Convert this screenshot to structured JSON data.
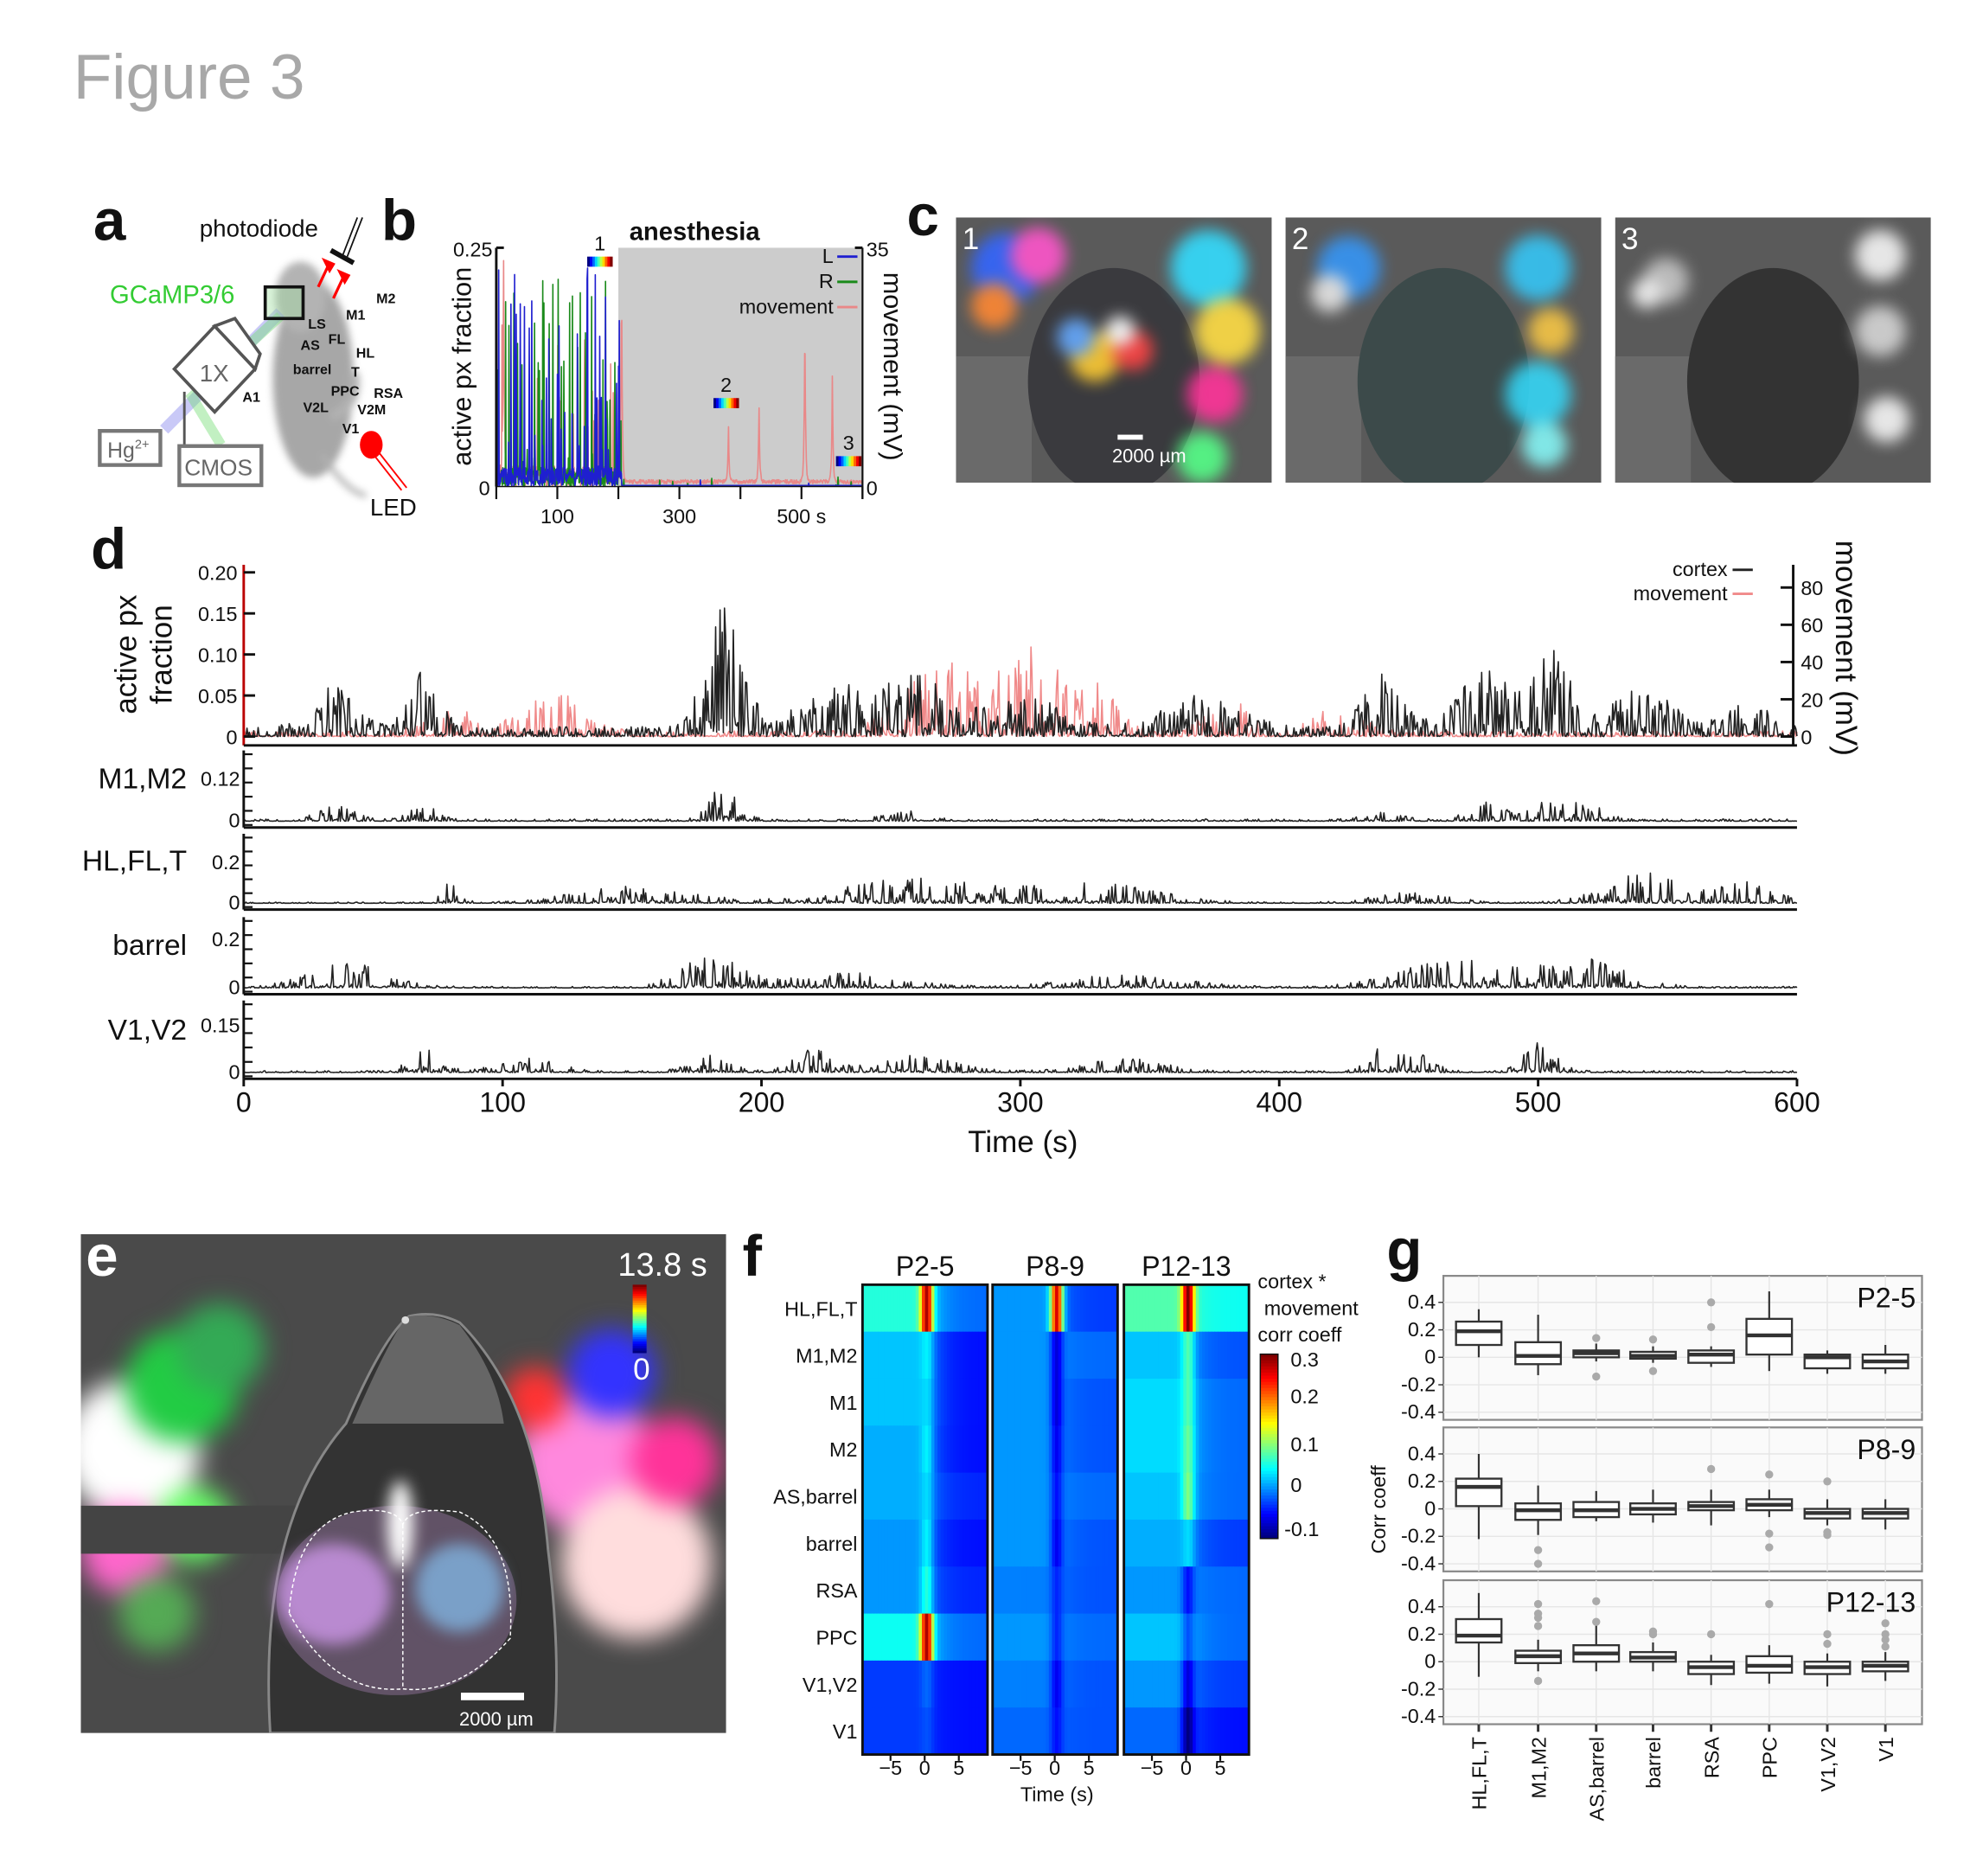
{
  "figure_title": "Figure 3",
  "panels": {
    "a": "a",
    "b": "b",
    "c": "c",
    "d": "d",
    "e": "e",
    "f": "f",
    "g": "g"
  },
  "panel_a": {
    "photodiode": "photodiode",
    "indicator": "GCaMP3/6",
    "lens": "1X",
    "lamp": "Hg",
    "lamp_sup": "2+",
    "camera": "CMOS",
    "led": "LED",
    "indicator_color": "#33cc33",
    "led_color": "#ff0000"
  },
  "panel_b": {
    "title": "anesthesia",
    "ylabel_left": "active px fraction",
    "ylabel_right": "movement (mV)",
    "yticks_left": [
      "0.25",
      "0"
    ],
    "yticks_right": [
      "35",
      "0"
    ],
    "xticks": [
      {
        "v": 100,
        "label": "100"
      },
      {
        "v": 300,
        "label": "300"
      },
      {
        "v": 500,
        "label": "500 s"
      }
    ],
    "xlim": [
      0,
      600
    ],
    "anesthesia_start": 200,
    "legend": [
      {
        "label": "L",
        "color": "#1f1fd0"
      },
      {
        "label": "R",
        "color": "#1a8a1a"
      },
      {
        "label": "movement",
        "color": "#e98888"
      }
    ],
    "markers": [
      {
        "label": "1",
        "t": 170
      },
      {
        "label": "2",
        "t": 375
      },
      {
        "label": "3",
        "t": 575
      }
    ],
    "movement_peaks_mV": [
      {
        "t": 12,
        "v": 33
      },
      {
        "t": 205,
        "v": 31
      },
      {
        "t": 380,
        "v": 7.8
      },
      {
        "t": 430,
        "v": 10.7
      },
      {
        "t": 505,
        "v": 25
      },
      {
        "t": 550,
        "v": 15.7
      }
    ]
  },
  "panel_c": {
    "images": [
      {
        "label": "1"
      },
      {
        "label": "2"
      },
      {
        "label": "3"
      }
    ],
    "scalebar": "2000 µm"
  },
  "panel_d": {
    "ylabel_left_1": "active px",
    "ylabel_left_2": "fraction",
    "ylabel_right": "movement (mV)",
    "yticks_left": [
      "0.20",
      "0.15",
      "0.10",
      "0.05",
      "0"
    ],
    "yticks_right": [
      "80",
      "60",
      "40",
      "20",
      "0"
    ],
    "legend": [
      {
        "label": "cortex",
        "color": "#222222"
      },
      {
        "label": "movement",
        "color": "#f08a8a"
      }
    ],
    "subplots": [
      {
        "label": "M1,M2",
        "ytick": "0.12",
        "zero": "0"
      },
      {
        "label": "HL,FL,T",
        "ytick": "0.2",
        "zero": "0"
      },
      {
        "label": "barrel",
        "ytick": "0.2",
        "zero": "0"
      },
      {
        "label": "V1,V2",
        "ytick": "0.15",
        "zero": "0"
      }
    ],
    "xticks": [
      "0",
      "100",
      "200",
      "300",
      "400",
      "500",
      "600"
    ],
    "xlabel": "Time (s)"
  },
  "panel_e": {
    "time": "13.8 s",
    "cbar_min": "0",
    "scalebar": "2000 µm",
    "regions": [
      "LS",
      "M1",
      "M2",
      "AS",
      "FL",
      "HL",
      "barrel",
      "T",
      "PPC",
      "RSA",
      "A1",
      "V2L",
      "V2M",
      "V1"
    ]
  },
  "panel_f": {
    "groups": [
      "P2-5",
      "P8-9",
      "P12-13"
    ],
    "rows": [
      "HL,FL,T",
      "M1,M2",
      "M1",
      "M2",
      "AS,barrel",
      "barrel",
      "RSA",
      "PPC",
      "V1,V2",
      "V1"
    ],
    "xticks": [
      "−5",
      "0",
      "5"
    ],
    "xlabel": "Time (s)",
    "cbar_title_1": "cortex *",
    "cbar_title_2": "movement",
    "cbar_title_3": "corr coeff",
    "cbar_ticks": [
      "0.3",
      "0.2",
      "0.1",
      "0",
      "-0.1"
    ],
    "clim": [
      -0.12,
      0.32
    ],
    "colormap": "jet",
    "profiles": [
      [
        [
          0.06,
          0.3,
          -0.02
        ],
        [
          0.02,
          0.04,
          -0.06
        ],
        [
          0.02,
          0.03,
          -0.06
        ],
        [
          0.01,
          0.04,
          -0.06
        ],
        [
          0.01,
          0.03,
          -0.05
        ],
        [
          0.0,
          0.04,
          -0.06
        ],
        [
          0.0,
          0.06,
          -0.05
        ],
        [
          0.05,
          0.3,
          -0.02
        ],
        [
          -0.04,
          -0.02,
          -0.06
        ],
        [
          -0.04,
          -0.03,
          -0.06
        ]
      ],
      [
        [
          0.0,
          0.28,
          -0.04
        ],
        [
          0.0,
          -0.08,
          -0.02
        ],
        [
          0.0,
          -0.08,
          -0.03
        ],
        [
          0.0,
          -0.07,
          -0.03
        ],
        [
          0.0,
          -0.06,
          -0.02
        ],
        [
          0.0,
          -0.07,
          -0.03
        ],
        [
          -0.01,
          -0.05,
          -0.03
        ],
        [
          0.0,
          -0.05,
          -0.02
        ],
        [
          -0.01,
          -0.07,
          -0.03
        ],
        [
          -0.02,
          -0.06,
          -0.03
        ]
      ],
      [
        [
          0.08,
          0.32,
          0.05
        ],
        [
          0.02,
          0.08,
          -0.03
        ],
        [
          0.03,
          0.08,
          -0.02
        ],
        [
          0.03,
          0.09,
          -0.02
        ],
        [
          0.02,
          0.1,
          -0.02
        ],
        [
          0.01,
          0.03,
          -0.04
        ],
        [
          0.0,
          -0.06,
          -0.02
        ],
        [
          0.02,
          -0.03,
          -0.02
        ],
        [
          0.0,
          -0.08,
          -0.04
        ],
        [
          -0.02,
          -0.12,
          -0.06
        ]
      ]
    ]
  },
  "chart_data": {
    "type": "box",
    "ylabel": "Corr coeff",
    "yticks": [
      "0.4",
      "0.2",
      "0",
      "-0.2",
      "-0.4"
    ],
    "ylim": [
      -0.45,
      0.5
    ],
    "categories": [
      "HL,FL,T",
      "M1,M2",
      "AS,barrel",
      "barrel",
      "RSA",
      "PPC",
      "V1,V2",
      "V1"
    ],
    "groups": [
      {
        "name": "P2-5",
        "boxes": [
          {
            "lo": 0.0,
            "q1": 0.09,
            "med": 0.19,
            "q3": 0.26,
            "hi": 0.35,
            "out": []
          },
          {
            "lo": -0.13,
            "q1": -0.05,
            "med": 0.01,
            "q3": 0.11,
            "hi": 0.31,
            "out": []
          },
          {
            "lo": -0.03,
            "q1": 0.0,
            "med": 0.03,
            "q3": 0.05,
            "hi": 0.1,
            "out": [
              0.14,
              -0.14
            ]
          },
          {
            "lo": -0.04,
            "q1": -0.01,
            "med": 0.01,
            "q3": 0.04,
            "hi": 0.08,
            "out": [
              0.13,
              -0.1
            ]
          },
          {
            "lo": -0.07,
            "q1": -0.04,
            "med": 0.02,
            "q3": 0.05,
            "hi": 0.08,
            "out": [
              0.4,
              0.22
            ]
          },
          {
            "lo": -0.1,
            "q1": 0.02,
            "med": 0.16,
            "q3": 0.28,
            "hi": 0.48,
            "out": []
          },
          {
            "lo": -0.12,
            "q1": -0.08,
            "med": 0.0,
            "q3": 0.02,
            "hi": 0.05,
            "out": []
          },
          {
            "lo": -0.12,
            "q1": -0.08,
            "med": -0.03,
            "q3": 0.02,
            "hi": 0.09,
            "out": []
          }
        ]
      },
      {
        "name": "P8-9",
        "boxes": [
          {
            "lo": -0.22,
            "q1": 0.02,
            "med": 0.16,
            "q3": 0.22,
            "hi": 0.4,
            "out": []
          },
          {
            "lo": -0.19,
            "q1": -0.08,
            "med": -0.01,
            "q3": 0.04,
            "hi": 0.17,
            "out": [
              -0.3,
              -0.4
            ]
          },
          {
            "lo": -0.09,
            "q1": -0.06,
            "med": -0.01,
            "q3": 0.05,
            "hi": 0.13,
            "out": []
          },
          {
            "lo": -0.1,
            "q1": -0.04,
            "med": 0.0,
            "q3": 0.04,
            "hi": 0.14,
            "out": []
          },
          {
            "lo": -0.12,
            "q1": -0.01,
            "med": 0.02,
            "q3": 0.05,
            "hi": 0.14,
            "out": [
              0.29
            ]
          },
          {
            "lo": -0.06,
            "q1": -0.01,
            "med": 0.03,
            "q3": 0.07,
            "hi": 0.14,
            "out": [
              0.25,
              -0.18,
              -0.28
            ]
          },
          {
            "lo": -0.12,
            "q1": -0.07,
            "med": -0.03,
            "q3": 0.0,
            "hi": 0.07,
            "out": [
              0.2,
              -0.17,
              -0.19
            ]
          },
          {
            "lo": -0.15,
            "q1": -0.07,
            "med": -0.03,
            "q3": 0.0,
            "hi": 0.07,
            "out": []
          }
        ]
      },
      {
        "name": "P12-13",
        "boxes": [
          {
            "lo": -0.11,
            "q1": 0.14,
            "med": 0.19,
            "q3": 0.31,
            "hi": 0.5,
            "out": []
          },
          {
            "lo": -0.07,
            "q1": -0.01,
            "med": 0.04,
            "q3": 0.08,
            "hi": 0.16,
            "out": [
              0.42,
              0.35,
              0.32,
              0.26,
              -0.14
            ]
          },
          {
            "lo": -0.07,
            "q1": 0.0,
            "med": 0.06,
            "q3": 0.12,
            "hi": 0.28,
            "out": [
              0.44,
              0.29
            ]
          },
          {
            "lo": -0.07,
            "q1": 0.0,
            "med": 0.03,
            "q3": 0.07,
            "hi": 0.14,
            "out": [
              0.22,
              0.2
            ]
          },
          {
            "lo": -0.17,
            "q1": -0.09,
            "med": -0.04,
            "q3": 0.0,
            "hi": 0.05,
            "out": [
              0.2
            ]
          },
          {
            "lo": -0.16,
            "q1": -0.08,
            "med": -0.03,
            "q3": 0.04,
            "hi": 0.12,
            "out": [
              0.42
            ]
          },
          {
            "lo": -0.18,
            "q1": -0.09,
            "med": -0.04,
            "q3": 0.0,
            "hi": 0.06,
            "out": [
              0.2,
              0.13
            ]
          },
          {
            "lo": -0.14,
            "q1": -0.07,
            "med": -0.03,
            "q3": 0.0,
            "hi": 0.07,
            "out": [
              0.28,
              0.2,
              0.16,
              0.11
            ]
          }
        ]
      }
    ]
  }
}
